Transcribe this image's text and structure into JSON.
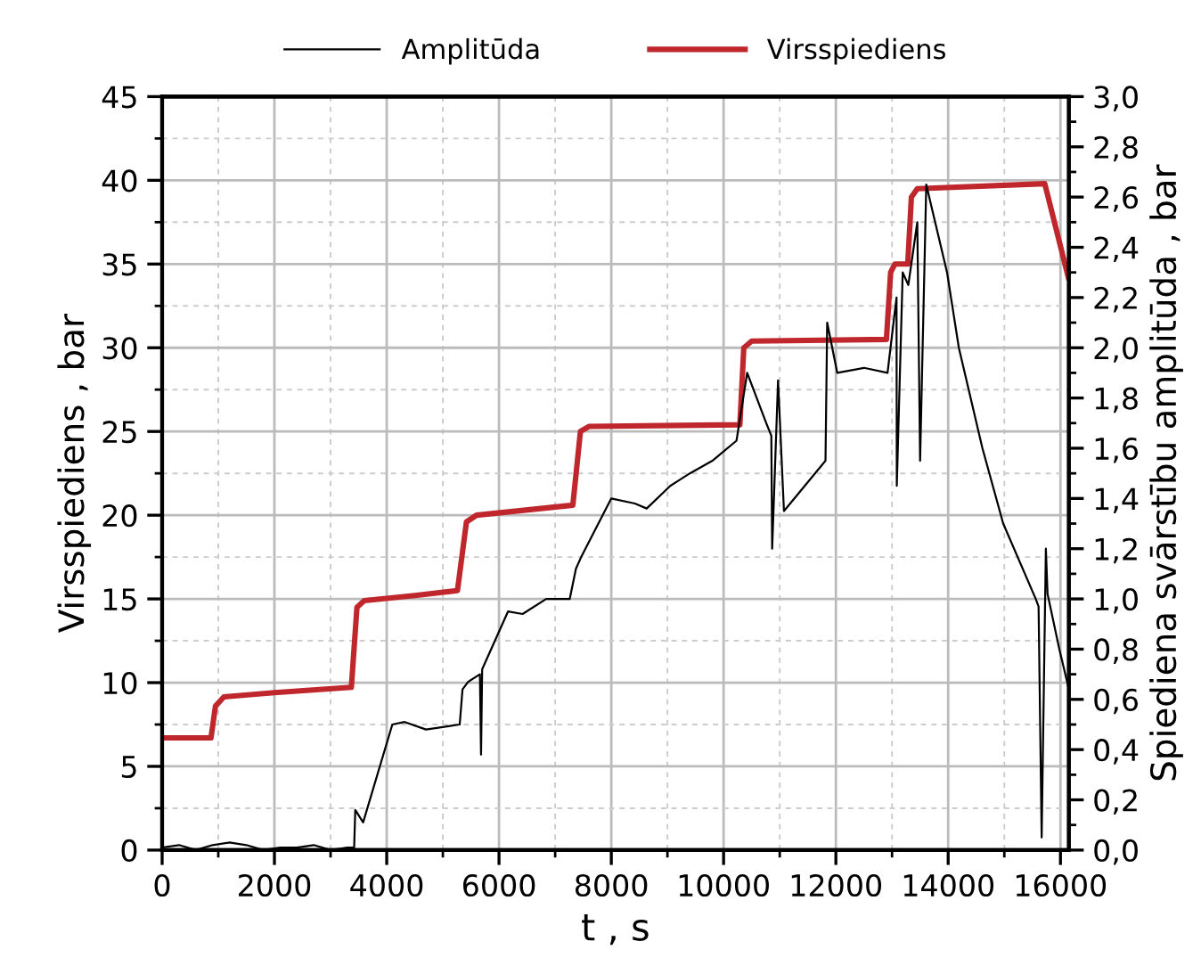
{
  "chart_data": {
    "type": "line",
    "xlabel": "t , s",
    "ylabel": "Virsspiediens , bar",
    "y2label": "Spiediena svārstību amplitūda , bar",
    "series": [
      {
        "name": "Amplitūda",
        "color": "#000000",
        "axis": "y2",
        "x": [
          0,
          300,
          600,
          900,
          1200,
          1500,
          1800,
          2100,
          2400,
          2700,
          3000,
          3300,
          3420,
          3440,
          3580,
          4100,
          4320,
          4700,
          5000,
          5300,
          5350,
          5450,
          5660,
          5680,
          5700,
          6160,
          6420,
          6840,
          7260,
          7370,
          7470,
          8000,
          8420,
          8630,
          9050,
          9400,
          9800,
          10230,
          10420,
          10760,
          10850,
          10865,
          10970,
          11075,
          11815,
          11845,
          12025,
          12500,
          12920,
          13080,
          13085,
          13190,
          13290,
          13450,
          13500,
          13610,
          13715,
          13980,
          14190,
          14610,
          14980,
          15560,
          15610,
          15665,
          15740,
          15770,
          15980,
          16140
        ],
        "values": [
          0.01,
          0.02,
          0.0,
          0.02,
          0.03,
          0.02,
          0.0,
          0.01,
          0.01,
          0.02,
          0.0,
          0.01,
          0.01,
          0.16,
          0.11,
          0.5,
          0.51,
          0.48,
          0.49,
          0.5,
          0.64,
          0.67,
          0.7,
          0.38,
          0.72,
          0.95,
          0.94,
          1.0,
          1.0,
          1.12,
          1.17,
          1.4,
          1.38,
          1.36,
          1.45,
          1.5,
          1.55,
          1.63,
          1.9,
          1.7,
          1.65,
          1.2,
          1.87,
          1.35,
          1.55,
          2.1,
          1.9,
          1.92,
          1.9,
          2.2,
          1.45,
          2.3,
          2.25,
          2.5,
          1.55,
          2.65,
          2.55,
          2.3,
          2.0,
          1.6,
          1.3,
          1.0,
          0.97,
          0.05,
          1.2,
          1.02,
          0.8,
          0.65
        ]
      },
      {
        "name": "Virsspiediens",
        "color": "#c0272d",
        "x": [
          0,
          870,
          950,
          1100,
          2000,
          3370,
          3470,
          3600,
          4500,
          5260,
          5420,
          5600,
          7315,
          7450,
          7600,
          10290,
          10360,
          10500,
          12900,
          12975,
          13050,
          13280,
          13345,
          13450,
          15720,
          16140
        ],
        "values": [
          6.7,
          6.7,
          8.6,
          9.15,
          9.4,
          9.72,
          14.5,
          14.9,
          15.2,
          15.5,
          19.6,
          20.0,
          20.6,
          25.0,
          25.3,
          25.4,
          30.0,
          30.4,
          30.5,
          34.5,
          35.0,
          35.0,
          39.0,
          39.5,
          39.8,
          34.2
        ]
      }
    ],
    "xlim": [
      0,
      16150
    ],
    "ylim": [
      0,
      45
    ],
    "y2lim": [
      0,
      3
    ],
    "xticks": [
      0,
      {
        "value": 1000,
        "label": null
      },
      2000,
      {
        "value": 3000,
        "label": null
      },
      4000,
      {
        "value": 5000,
        "label": null
      },
      6000,
      {
        "value": 7000,
        "label": null
      },
      8000,
      {
        "value": 9000,
        "label": null
      },
      10000,
      {
        "value": 11000,
        "label": null
      },
      12000,
      {
        "value": 13000,
        "label": null
      },
      14000,
      {
        "value": 15000,
        "label": null
      },
      16000
    ],
    "yticks": [
      0,
      {
        "value": 2.5,
        "label": null
      },
      5,
      {
        "value": 7.5,
        "label": null
      },
      10,
      {
        "value": 12.5,
        "label": null
      },
      15,
      {
        "value": 17.5,
        "label": null
      },
      20,
      {
        "value": 22.5,
        "label": null
      },
      25,
      {
        "value": 27.5,
        "label": null
      },
      30,
      {
        "value": 32.5,
        "label": null
      },
      35,
      {
        "value": 37.5,
        "label": null
      },
      40,
      {
        "value": 42.5,
        "label": null
      },
      45
    ],
    "y2ticks": [
      {
        "value": 0,
        "label": "0,0"
      },
      {
        "value": 0.1,
        "label": null
      },
      {
        "value": 0.2,
        "label": "0,2"
      },
      {
        "value": 0.3,
        "label": null
      },
      {
        "value": 0.4,
        "label": "0,4"
      },
      {
        "value": 0.5,
        "label": null
      },
      {
        "value": 0.6,
        "label": "0,6"
      },
      {
        "value": 0.7,
        "label": null
      },
      {
        "value": 0.8,
        "label": "0,8"
      },
      {
        "value": 0.9,
        "label": null
      },
      {
        "value": 1.0,
        "label": "1,0"
      },
      {
        "value": 1.1,
        "label": null
      },
      {
        "value": 1.2,
        "label": "1,2"
      },
      {
        "value": 1.3,
        "label": null
      },
      {
        "value": 1.4,
        "label": "1,4"
      },
      {
        "value": 1.5,
        "label": null
      },
      {
        "value": 1.6,
        "label": "1,6"
      },
      {
        "value": 1.7,
        "label": null
      },
      {
        "value": 1.8,
        "label": "1,8"
      },
      {
        "value": 1.9,
        "label": null
      },
      {
        "value": 2.0,
        "label": "2,0"
      },
      {
        "value": 2.1,
        "label": null
      },
      {
        "value": 2.2,
        "label": "2,2"
      },
      {
        "value": 2.3,
        "label": null
      },
      {
        "value": 2.4,
        "label": "2,4"
      },
      {
        "value": 2.5,
        "label": null
      },
      {
        "value": 2.6,
        "label": "2,6"
      },
      {
        "value": 2.7,
        "label": null
      },
      {
        "value": 2.8,
        "label": "2,8"
      },
      {
        "value": 2.9,
        "label": null
      },
      {
        "value": 3.0,
        "label": "3,0"
      }
    ],
    "grid": true,
    "legend": "top"
  }
}
